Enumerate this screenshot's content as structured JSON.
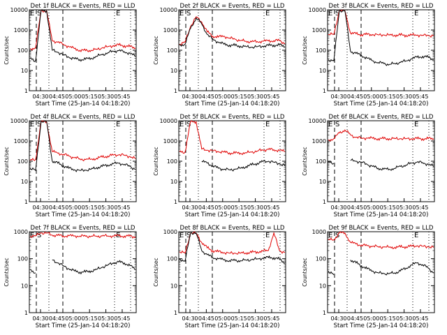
{
  "chart_data": [
    {
      "type": "line",
      "title": "Det 1f BLACK = Events, RED = LLD",
      "xlabel": "Start Time (25-Jan-14 04:18:20)",
      "ylabel": "Counts/sec",
      "ylog": true,
      "ylim": [
        1,
        10000
      ],
      "xticks": [
        "04:30",
        "04:45",
        "05:00",
        "05:15",
        "05:30",
        "05:45"
      ],
      "yticks": [
        "1",
        "10",
        "100",
        "1000",
        "10000"
      ],
      "flags": [
        {
          "label": "E",
          "pos": "near-left"
        },
        {
          "label": "S",
          "pos": "left"
        },
        {
          "label": "E",
          "pos": "right"
        }
      ],
      "series": [
        {
          "color": "#e00000",
          "values": [
            120,
            130,
            9000,
            9000,
            300,
            250,
            200,
            150,
            120,
            100,
            95,
            100,
            110,
            130,
            150,
            170,
            180,
            170,
            150,
            130
          ]
        },
        {
          "color": "#000000",
          "values": [
            40,
            30,
            9000,
            9000,
            100,
            80,
            60,
            45,
            38,
            35,
            36,
            40,
            50,
            60,
            75,
            90,
            95,
            85,
            70,
            50
          ]
        }
      ]
    },
    {
      "type": "line",
      "title": "Det 2f BLACK = Events, RED = LLD",
      "xlabel": "Start Time (25-Jan-14 04:18:20)",
      "ylabel": "Counts/sec",
      "ylog": true,
      "ylim": [
        1,
        10000
      ],
      "xticks": [
        "04:30",
        "04:45",
        "05:00",
        "05:15",
        "05:30",
        "05:45"
      ],
      "yticks": [
        "1",
        "10",
        "100",
        "1000",
        "10000"
      ],
      "flags": [
        {
          "label": "E",
          "pos": "near-left"
        },
        {
          "label": "S",
          "pos": "left"
        },
        {
          "label": "E",
          "pos": "right"
        }
      ],
      "series": [
        {
          "color": "#e00000",
          "values": [
            200,
            250,
            1500,
            4500,
            2500,
            800,
            500,
            450,
            500,
            400,
            350,
            300,
            280,
            260,
            270,
            280,
            290,
            300,
            300,
            220
          ]
        },
        {
          "color": "#000000",
          "values": [
            180,
            200,
            1200,
            4000,
            2000,
            600,
            350,
            250,
            200,
            180,
            170,
            160,
            150,
            140,
            150,
            160,
            170,
            180,
            180,
            150
          ]
        }
      ]
    },
    {
      "type": "line",
      "title": "Det 3f BLACK = Events, RED = LLD",
      "xlabel": "Start Time (25-Jan-14 04:18:20)",
      "ylabel": "Counts/sec",
      "ylog": true,
      "ylim": [
        1,
        10000
      ],
      "xticks": [
        "04:30",
        "04:45",
        "05:00",
        "05:15",
        "05:30",
        "05:45"
      ],
      "yticks": [
        "1",
        "10",
        "100",
        "1000",
        "10000"
      ],
      "flags": [
        {
          "label": "E",
          "pos": "near-left"
        },
        {
          "label": "S",
          "pos": "left"
        },
        {
          "label": "E",
          "pos": "right"
        }
      ],
      "series": [
        {
          "color": "#e00000",
          "values": [
            600,
            600,
            9000,
            9000,
            700,
            650,
            600,
            600,
            600,
            580,
            570,
            560,
            560,
            550,
            550,
            560,
            560,
            550,
            540,
            520
          ]
        },
        {
          "color": "#000000",
          "values": [
            35,
            30,
            9000,
            9000,
            90,
            70,
            55,
            40,
            30,
            25,
            22,
            20,
            22,
            25,
            30,
            38,
            45,
            50,
            45,
            35
          ]
        }
      ]
    },
    {
      "type": "line",
      "title": "Det 4f BLACK = Events, RED = LLD",
      "xlabel": "Start Time (25-Jan-14 04:18:20)",
      "ylabel": "Counts/sec",
      "ylog": true,
      "ylim": [
        1,
        10000
      ],
      "xticks": [
        "04:30",
        "04:45",
        "05:00",
        "05:15",
        "05:30",
        "05:45"
      ],
      "yticks": [
        "1",
        "10",
        "100",
        "1000",
        "10000"
      ],
      "flags": [
        {
          "label": "E",
          "pos": "near-left"
        },
        {
          "label": "S",
          "pos": "left"
        },
        {
          "label": "E",
          "pos": "right"
        }
      ],
      "series": [
        {
          "color": "#e00000",
          "values": [
            110,
            120,
            9000,
            9000,
            300,
            250,
            220,
            180,
            150,
            130,
            120,
            125,
            140,
            160,
            180,
            200,
            210,
            200,
            170,
            130
          ]
        },
        {
          "color": "#000000",
          "values": [
            45,
            35,
            9000,
            9000,
            100,
            80,
            60,
            45,
            38,
            35,
            36,
            40,
            48,
            55,
            65,
            75,
            80,
            70,
            55,
            40
          ]
        }
      ]
    },
    {
      "type": "line",
      "title": "Det 5f BLACK = Events, RED = LLD",
      "xlabel": "Start Time (25-Jan-14 04:18:20)",
      "ylabel": "Counts/sec",
      "ylog": true,
      "ylim": [
        1,
        10000
      ],
      "xticks": [
        "04:30",
        "04:45",
        "05:00",
        "05:15",
        "05:30",
        "05:45"
      ],
      "yticks": [
        "1",
        "10",
        "100",
        "1000",
        "10000"
      ],
      "flags": [
        {
          "label": "E",
          "pos": "near-left"
        },
        {
          "label": "S",
          "pos": "left"
        },
        {
          "label": "E",
          "pos": "right"
        }
      ],
      "series": [
        {
          "color": "#e00000",
          "values": [
            300,
            280,
            9000,
            9000,
            400,
            350,
            330,
            300,
            280,
            260,
            250,
            250,
            260,
            280,
            320,
            360,
            380,
            370,
            340,
            300
          ]
        },
        {
          "color": "#000000",
          "values": [
            null,
            null,
            null,
            null,
            100,
            80,
            60,
            45,
            40,
            38,
            40,
            45,
            55,
            65,
            80,
            95,
            100,
            90,
            75,
            60
          ]
        }
      ]
    },
    {
      "type": "line",
      "title": "Det 6f BLACK = Events, RED = LLD",
      "xlabel": "Start Time (25-Jan-14 04:18:20)",
      "ylabel": "Counts/sec",
      "ylog": true,
      "ylim": [
        1,
        10000
      ],
      "xticks": [
        "04:30",
        "04:45",
        "05:00",
        "05:15",
        "05:30",
        "05:45"
      ],
      "yticks": [
        "1",
        "10",
        "100",
        "1000",
        "10000"
      ],
      "flags": [
        {
          "label": "E",
          "pos": "near-left"
        },
        {
          "label": "S",
          "pos": "left"
        },
        {
          "label": "E",
          "pos": "right"
        }
      ],
      "series": [
        {
          "color": "#e00000",
          "values": [
            1100,
            1300,
            2500,
            3500,
            2000,
            1500,
            1400,
            1400,
            1350,
            1300,
            1300,
            1300,
            1300,
            1300,
            1300,
            1300,
            1300,
            1300,
            1300,
            1300
          ]
        },
        {
          "color": "#000000",
          "values": [
            90,
            80,
            null,
            null,
            110,
            100,
            90,
            70,
            55,
            45,
            40,
            40,
            45,
            55,
            65,
            80,
            90,
            85,
            70,
            55
          ]
        }
      ]
    },
    {
      "type": "line",
      "title": "Det 7f BLACK = Events, RED = LLD",
      "xlabel": "Start Time (25-Jan-14 04:18:20)",
      "ylabel": "Counts/sec",
      "ylog": true,
      "ylim": [
        1,
        1000
      ],
      "xticks": [
        "04:30",
        "04:45",
        "05:00",
        "05:15",
        "05:30",
        "05:45"
      ],
      "yticks": [
        "1",
        "10",
        "100",
        "1000"
      ],
      "flags": [
        {
          "label": "E",
          "pos": "near-left"
        },
        {
          "label": "S",
          "pos": "left"
        },
        {
          "label": "E",
          "pos": "right"
        }
      ],
      "series": [
        {
          "color": "#e00000",
          "values": [
            700,
            700,
            900,
            900,
            750,
            720,
            700,
            700,
            700,
            690,
            680,
            680,
            680,
            690,
            700,
            700,
            700,
            690,
            680,
            650
          ]
        },
        {
          "color": "#000000",
          "values": [
            40,
            30,
            null,
            null,
            90,
            70,
            55,
            42,
            35,
            32,
            32,
            35,
            40,
            48,
            58,
            70,
            75,
            70,
            55,
            40
          ]
        }
      ]
    },
    {
      "type": "line",
      "title": "Det 8f BLACK = Events, RED = LLD",
      "xlabel": "Start Time (25-Jan-14 04:18:20)",
      "ylabel": "Counts/sec",
      "ylog": true,
      "ylim": [
        1,
        1000
      ],
      "xticks": [
        "04:30",
        "04:45",
        "05:00",
        "05:15",
        "05:30",
        "05:45"
      ],
      "yticks": [
        "1",
        "10",
        "100",
        "1000"
      ],
      "flags": [
        {
          "label": "E",
          "pos": "near-left"
        },
        {
          "label": "S",
          "pos": "left"
        },
        {
          "label": "E",
          "pos": "right"
        }
      ],
      "series": [
        {
          "color": "#e00000",
          "values": [
            180,
            160,
            900,
            900,
            400,
            250,
            200,
            180,
            170,
            160,
            160,
            160,
            165,
            170,
            180,
            190,
            200,
            900,
            200,
            170
          ]
        },
        {
          "color": "#000000",
          "values": [
            100,
            80,
            900,
            900,
            200,
            140,
            110,
            100,
            90,
            85,
            85,
            85,
            88,
            92,
            98,
            105,
            110,
            110,
            95,
            70
          ]
        }
      ]
    },
    {
      "type": "line",
      "title": "Det 9f BLACK = Events, RED = LLD",
      "xlabel": "Start Time (25-Jan-14 04:18:20)",
      "ylabel": "Counts/sec",
      "ylog": true,
      "ylim": [
        1,
        1000
      ],
      "xticks": [
        "04:30",
        "04:45",
        "05:00",
        "05:15",
        "05:30",
        "05:45"
      ],
      "yticks": [
        "1",
        "10",
        "100",
        "1000"
      ],
      "flags": [
        {
          "label": "E",
          "pos": "near-left"
        },
        {
          "label": "S",
          "pos": "left"
        },
        {
          "label": "E",
          "pos": "right"
        }
      ],
      "series": [
        {
          "color": "#e00000",
          "values": [
            500,
            500,
            900,
            900,
            400,
            350,
            320,
            300,
            290,
            280,
            270,
            265,
            265,
            270,
            280,
            290,
            300,
            290,
            280,
            260
          ]
        },
        {
          "color": "#000000",
          "values": [
            35,
            25,
            null,
            null,
            90,
            70,
            55,
            42,
            35,
            30,
            28,
            28,
            30,
            35,
            45,
            58,
            70,
            60,
            45,
            30
          ]
        }
      ]
    }
  ]
}
